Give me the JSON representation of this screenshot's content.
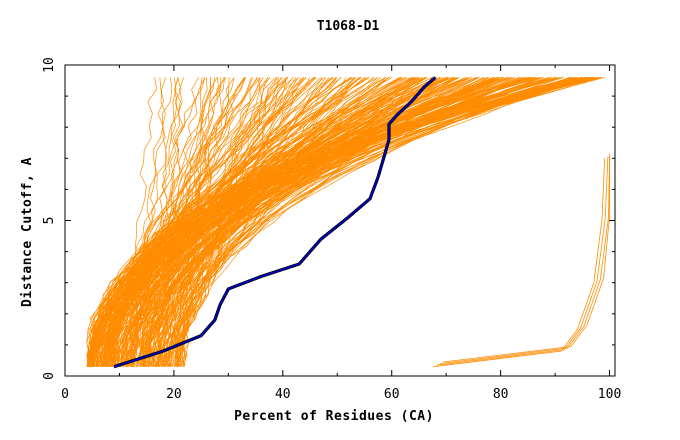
{
  "chart_data": {
    "type": "line",
    "title": "T1068-D1",
    "xlabel": "Percent of Residues (CA)",
    "ylabel": "Distance Cutoff, A",
    "xlim": [
      0,
      101
    ],
    "ylim": [
      0,
      10
    ],
    "x_ticks": [
      "0",
      "20",
      "40",
      "60",
      "80",
      "100"
    ],
    "y_ticks": [
      "0",
      "5",
      "10"
    ],
    "grid": false,
    "legend": "none",
    "colors": {
      "models": "#ff8c00",
      "highlight": "#0000cc",
      "frame": "#000000"
    },
    "model_lines": {
      "description": "several hundred orange model curves fanning between ~4% and ~100% residues, distance 0.3 to 9.6 A",
      "count_approx": 300
    },
    "outlier_series": {
      "name": "",
      "points": [
        [
          68.5,
          0.3
        ],
        [
          92,
          0.8
        ],
        [
          95,
          1.5
        ],
        [
          98,
          3
        ],
        [
          99.5,
          5
        ],
        [
          100,
          7
        ]
      ]
    },
    "highlight_series": {
      "name": "",
      "points": [
        [
          9,
          0.3
        ],
        [
          18,
          0.8
        ],
        [
          25,
          1.3
        ],
        [
          27.5,
          1.8
        ],
        [
          28.5,
          2.3
        ],
        [
          30,
          2.8
        ],
        [
          36,
          3.2
        ],
        [
          43,
          3.6
        ],
        [
          47,
          4.4
        ],
        [
          52,
          5.1
        ],
        [
          56,
          5.7
        ],
        [
          57.5,
          6.4
        ],
        [
          58.5,
          7.0
        ],
        [
          59.5,
          7.6
        ],
        [
          59.5,
          8.1
        ],
        [
          61,
          8.4
        ],
        [
          63.5,
          8.8
        ],
        [
          66,
          9.3
        ],
        [
          68,
          9.6
        ]
      ]
    }
  }
}
